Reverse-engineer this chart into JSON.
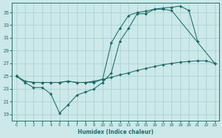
{
  "xlabel": "Humidex (Indice chaleur)",
  "xlim": [
    -0.5,
    23.5
  ],
  "ylim": [
    18.0,
    36.5
  ],
  "yticks": [
    19,
    21,
    23,
    25,
    27,
    29,
    31,
    33,
    35
  ],
  "xticks": [
    0,
    1,
    2,
    3,
    4,
    5,
    6,
    7,
    8,
    9,
    10,
    11,
    12,
    13,
    14,
    15,
    16,
    17,
    18,
    19,
    20,
    21,
    22,
    23
  ],
  "bg_color": "#cce8e8",
  "line_color": "#1a6b6b",
  "grid_color": "#b0d4d4",
  "line1_x": [
    0,
    1,
    2,
    3,
    4,
    5,
    6,
    7,
    8,
    9,
    10,
    11,
    12,
    13,
    14,
    15,
    16,
    17,
    18,
    19,
    20,
    21
  ],
  "line1_y": [
    25.0,
    24.0,
    23.2,
    23.2,
    22.2,
    19.2,
    20.5,
    22.0,
    22.5,
    23.0,
    24.0,
    25.5,
    30.5,
    32.5,
    34.8,
    34.8,
    35.5,
    35.7,
    35.8,
    36.0,
    35.3,
    30.5
  ],
  "line2_x": [
    0,
    1,
    2,
    3,
    4,
    5,
    6,
    7,
    8,
    9,
    10,
    11,
    12,
    13,
    14,
    15,
    16,
    17,
    18,
    23
  ],
  "line2_y": [
    25.0,
    24.2,
    24.0,
    24.0,
    24.0,
    24.0,
    24.2,
    24.0,
    24.0,
    24.0,
    24.5,
    30.2,
    32.5,
    34.5,
    35.0,
    35.2,
    35.5,
    35.5,
    35.3,
    27.0
  ],
  "line3_x": [
    0,
    1,
    2,
    3,
    4,
    5,
    6,
    7,
    8,
    9,
    10,
    11,
    12,
    13,
    14,
    15,
    16,
    17,
    18,
    19,
    20,
    21,
    22,
    23
  ],
  "line3_y": [
    25.0,
    24.2,
    24.0,
    24.0,
    24.0,
    24.0,
    24.2,
    24.0,
    24.0,
    24.2,
    24.5,
    24.8,
    25.2,
    25.5,
    25.9,
    26.2,
    26.5,
    26.8,
    27.0,
    27.2,
    27.3,
    27.4,
    27.4,
    27.0
  ]
}
